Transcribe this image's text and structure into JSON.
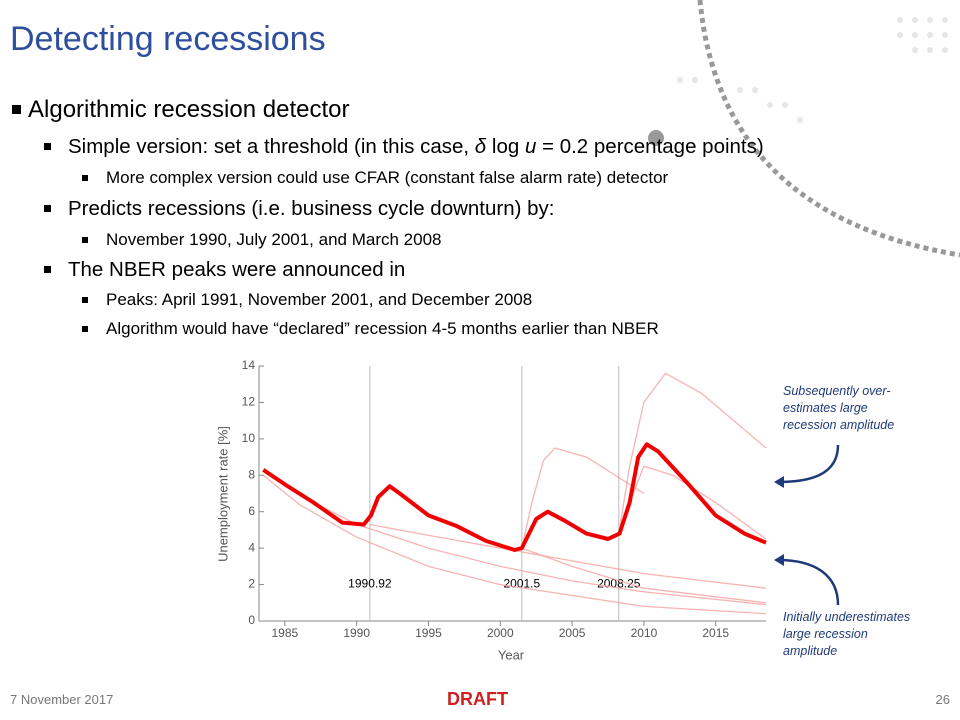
{
  "header": {
    "title": "Detecting recessions"
  },
  "bullets": [
    {
      "text": "Algorithmic recession detector",
      "children": [
        {
          "parts": [
            "Simple version: set a threshold (in this case, ",
            "δ",
            " log ",
            "u",
            " = 0.2 percentage points)"
          ],
          "children": [
            {
              "text": "More complex version could use CFAR (constant false alarm rate) detector"
            }
          ]
        },
        {
          "text": "Predicts recessions (i.e. business cycle downturn) by:",
          "children": [
            {
              "text": "November 1990, July 2001, and March 2008"
            }
          ]
        },
        {
          "text": "The NBER peaks were announced in",
          "children": [
            {
              "text": "Peaks: April 1991, November 2001, and December 2008"
            },
            {
              "text": "Algorithm would have “declared” recession 4-5 months earlier than NBER"
            }
          ]
        }
      ]
    }
  ],
  "chart_data": {
    "type": "line",
    "xlabel": "Year",
    "ylabel": "Unemployment rate [%]",
    "xlim": [
      1983.2,
      2018.5
    ],
    "ylim": [
      0,
      14
    ],
    "xticks": [
      1985,
      1990,
      1995,
      2000,
      2005,
      2010,
      2015
    ],
    "yticks": [
      0,
      2,
      4,
      6,
      8,
      10,
      12,
      14
    ],
    "vlines": [
      1990.92,
      2001.5,
      2008.25
    ],
    "annotations": [
      "Subsequently over-estimates large recession amplitude",
      "Initially underestimates large recession amplitude"
    ],
    "series": [
      {
        "color": "#f6a0a0",
        "x": [
          1983.5,
          1987,
          1990,
          1995,
          2000,
          2005,
          2010,
          2018.5
        ],
        "values": [
          8.2,
          6.5,
          5.3,
          4.0,
          3.0,
          2.2,
          1.6,
          0.9
        ]
      },
      {
        "color": "#f6a0a0",
        "x": [
          1983.5,
          1986,
          1990,
          1995,
          2000,
          2010,
          2018.5
        ],
        "values": [
          8.0,
          6.4,
          4.6,
          3.0,
          2.0,
          0.8,
          0.4
        ]
      },
      {
        "color": "#f6a0a0",
        "x": [
          1990.92,
          1995,
          2000,
          2005,
          2010,
          2018.5
        ],
        "values": [
          5.3,
          4.7,
          4.0,
          3.3,
          2.6,
          1.8
        ]
      },
      {
        "color": "#f6a0a0",
        "x": [
          2001.5,
          2005,
          2010,
          2018.5
        ],
        "values": [
          4.0,
          3.0,
          1.8,
          1.0
        ]
      },
      {
        "color": "#f6a0a0",
        "x": [
          2001.5,
          2002.2,
          2003,
          2003.8,
          2006,
          2010
        ],
        "values": [
          4.0,
          6.5,
          8.8,
          9.5,
          9.0,
          7.0
        ]
      },
      {
        "color": "#f6a0a0",
        "x": [
          2008.25,
          2009,
          2010,
          2011.5,
          2014,
          2018.5
        ],
        "values": [
          4.8,
          8.5,
          12.0,
          13.6,
          12.5,
          9.5
        ]
      },
      {
        "color": "#f6a0a0",
        "x": [
          2008.25,
          2009,
          2010,
          2012,
          2015,
          2018.5
        ],
        "values": [
          4.8,
          6.5,
          8.5,
          8.0,
          6.5,
          4.5
        ]
      },
      {
        "color": "#f00000",
        "x": [
          1983.5,
          1985,
          1987,
          1989,
          1990.5,
          1991,
          1991.5,
          1992.3,
          1993,
          1995,
          1997,
          1999,
          2001,
          2001.5,
          2002,
          2002.5,
          2003.3,
          2004.5,
          2006,
          2007.5,
          2008.3,
          2009,
          2009.6,
          2010.2,
          2011,
          2013,
          2015,
          2017,
          2018.5
        ],
        "values": [
          8.3,
          7.5,
          6.5,
          5.4,
          5.3,
          5.8,
          6.8,
          7.4,
          7.0,
          5.8,
          5.2,
          4.4,
          3.9,
          4.0,
          4.8,
          5.6,
          6.0,
          5.5,
          4.8,
          4.5,
          4.8,
          6.5,
          9.0,
          9.7,
          9.3,
          7.6,
          5.8,
          4.8,
          4.3
        ]
      }
    ]
  },
  "footer": {
    "date": "7 November 2017",
    "status": "DRAFT",
    "page": "26"
  }
}
